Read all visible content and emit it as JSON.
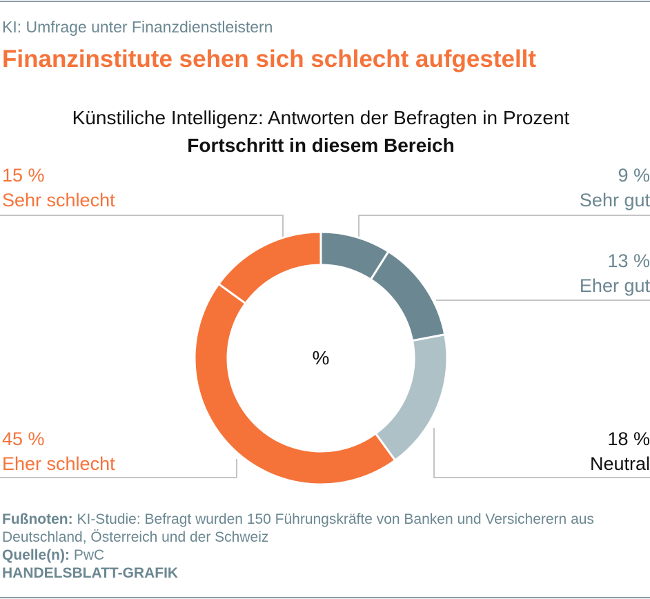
{
  "kicker": "KI: Umfrage unter Finanzdienstleistern",
  "title": "Finanzinstitute sehen sich schlecht aufgestellt",
  "chart_data": {
    "type": "pie",
    "donut": true,
    "title": "Künstiliche Intelligenz: Antworten der Befragten in Prozent",
    "subtitle": "Fortschritt in diesem Bereich",
    "center_label": "%",
    "slices": [
      {
        "name": "Sehr gut",
        "value": 9,
        "label": "9 %",
        "color": "#6b8892"
      },
      {
        "name": "Eher gut",
        "value": 13,
        "label": "13 %",
        "color": "#6b8892"
      },
      {
        "name": "Neutral",
        "value": 18,
        "label": "18 %",
        "color": "#adc1c7"
      },
      {
        "name": "Eher schlecht",
        "value": 45,
        "label": "45 %",
        "color": "#f57339"
      },
      {
        "name": "Sehr schlecht",
        "value": 15,
        "label": "15 %",
        "color": "#f57339"
      }
    ]
  },
  "footer": {
    "footnote_label": "Fußnoten:",
    "footnote_text": " KI-Studie: Befragt wurden 150 Führungskräfte von Banken und Versicherern aus Deutschland, Österreich und der Schweiz",
    "source_label": "Quelle(n):",
    "source_text": " PwC",
    "brand": "HANDELSBLATT-GRAFIK"
  }
}
